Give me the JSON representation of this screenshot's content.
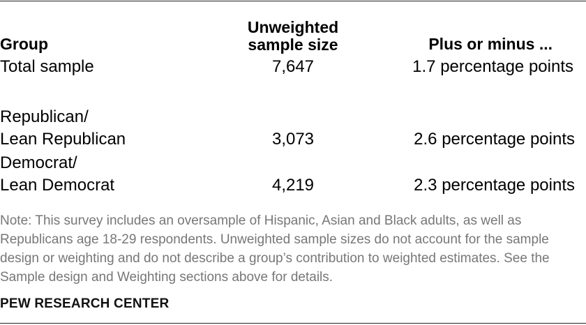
{
  "table": {
    "headers": {
      "group": "Group",
      "sample_line1": "Unweighted",
      "sample_line2": "sample size",
      "moe": "Plus or minus ..."
    },
    "rows": [
      {
        "group_line1": "Total sample",
        "group_line2": "",
        "sample": "7,647",
        "moe": "1.7 percentage points"
      },
      {
        "group_line1": "Republican/",
        "group_line2": "Lean Republican",
        "sample": "3,073",
        "moe": "2.6 percentage points"
      },
      {
        "group_line1": "Democrat/",
        "group_line2": "Lean Democrat",
        "sample": "4,219",
        "moe": "2.3 percentage points"
      }
    ]
  },
  "note": "Note: This survey includes an oversample of Hispanic, Asian and Black adults, as well as Republicans age 18-29 respondents. Unweighted sample sizes do not account for the sample design or weighting and do not describe a group’s contribution to weighted estimates. See the Sample design and Weighting sections above for details.",
  "source": "PEW RESEARCH CENTER"
}
